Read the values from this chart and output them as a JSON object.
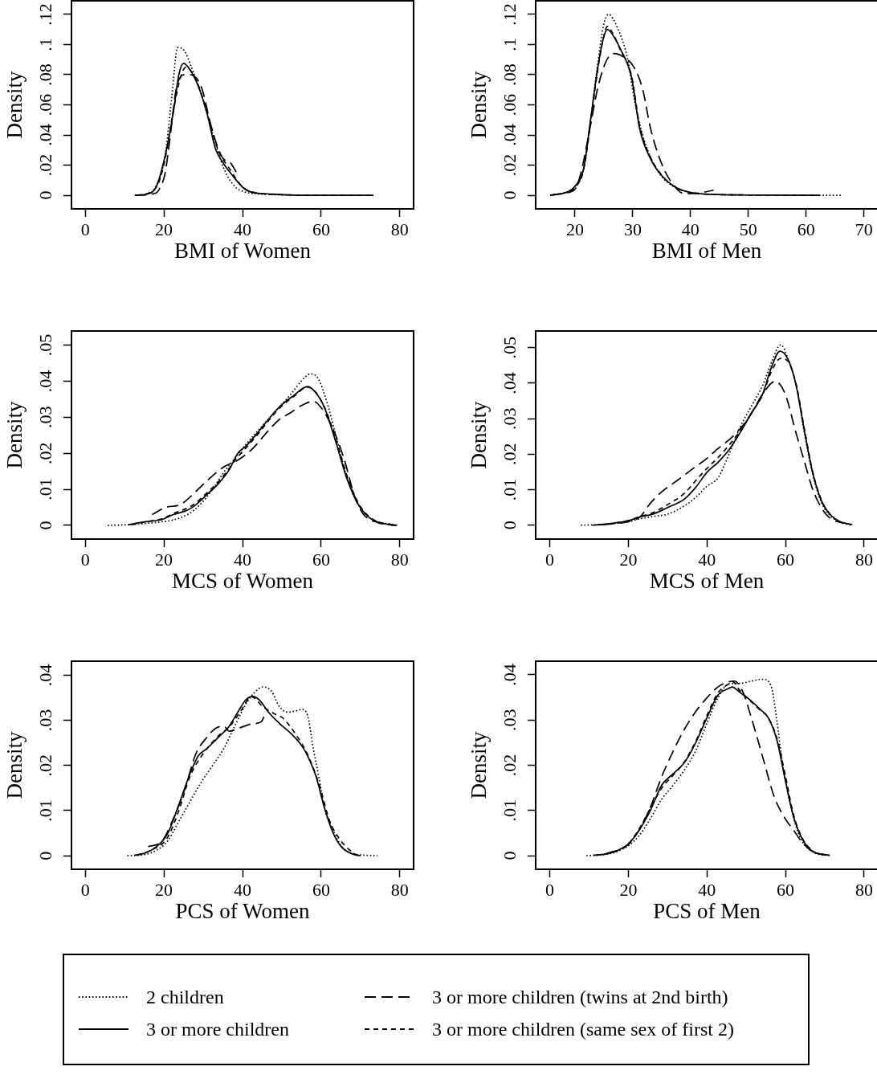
{
  "chart_data": [
    {
      "type": "line",
      "xlabel": "BMI of Women",
      "ylabel": "Density",
      "xlim": [
        -3.5,
        83.5
      ],
      "ylim": [
        -0.009,
        0.129
      ],
      "xticks": [
        0,
        20,
        40,
        60,
        80
      ],
      "yticks": [
        {
          "value": 0,
          "label": "0"
        },
        {
          "value": 0.02,
          "label": ".02"
        },
        {
          "value": 0.04,
          "label": ".04"
        },
        {
          "value": 0.06,
          "label": ".06"
        },
        {
          "value": 0.08,
          "label": ".08"
        },
        {
          "value": 0.1,
          "label": ".1"
        },
        {
          "value": 0.12,
          "label": ".12"
        }
      ],
      "legend": "bottom",
      "series": [
        {
          "name": "2 children",
          "color": "#000000",
          "line_style": "dotted",
          "x": [
            12.6,
            16,
            18,
            20.3,
            22,
            23.5,
            25.2,
            27,
            29.5,
            32.4,
            35.2,
            38,
            40.2,
            44,
            50,
            60,
            70
          ],
          "values": [
            0,
            0.001,
            0.006,
            0.026,
            0.065,
            0.098,
            0.096,
            0.085,
            0.067,
            0.041,
            0.018,
            0.006,
            0.0025,
            0.001,
            0.0003,
            0,
            0
          ]
        },
        {
          "name": "3 or more children",
          "color": "#000000",
          "line_style": "solid",
          "x": [
            12.6,
            16,
            18.1,
            20.3,
            22.4,
            23.8,
            25,
            26.7,
            28.8,
            30.9,
            33.1,
            35.2,
            37.3,
            40.2,
            42.3,
            46.6,
            49.4,
            56.5,
            73.3
          ],
          "values": [
            0,
            0.001,
            0.006,
            0.026,
            0.055,
            0.08,
            0.0875,
            0.083,
            0.072,
            0.055,
            0.031,
            0.021,
            0.0136,
            0.005,
            0.002,
            0.001,
            0.0005,
            0,
            0
          ]
        },
        {
          "name": "3 or more children (twins at 2nd birth)",
          "color": "#000000",
          "line_style": "dashed",
          "x": [
            12.6,
            18,
            19.2,
            20.3,
            21.7,
            23.1,
            25.2,
            26.5,
            28.5,
            30,
            31.6,
            33.8,
            35.2,
            36.6,
            38.4
          ],
          "values": [
            0,
            0.0015,
            0.006,
            0.0145,
            0.041,
            0.07,
            0.08,
            0.08,
            0.077,
            0.068,
            0.05,
            0.031,
            0.024,
            0.0225,
            0.0155
          ]
        },
        {
          "name": "3 or more children (same sex of first 2)",
          "color": "#000000",
          "line_style": "dashed",
          "x": [
            13.2,
            18,
            20.3,
            22.4,
            24.2,
            25.6,
            28.1,
            30.9,
            33.8,
            36.6,
            40.2,
            43.8,
            49.4,
            60,
            72.5
          ],
          "values": [
            0,
            0.005,
            0.024,
            0.056,
            0.078,
            0.085,
            0.077,
            0.056,
            0.03,
            0.018,
            0.005,
            0.0015,
            0.0005,
            0,
            0
          ]
        }
      ]
    },
    {
      "type": "line",
      "xlabel": "BMI of Men",
      "ylabel": "Density",
      "xlim": [
        13.2,
        72.4
      ],
      "ylim": [
        -0.009,
        0.129
      ],
      "xticks": [
        20,
        30,
        40,
        50,
        60,
        70
      ],
      "yticks": [
        {
          "value": 0,
          "label": "0"
        },
        {
          "value": 0.02,
          "label": ".02"
        },
        {
          "value": 0.04,
          "label": ".04"
        },
        {
          "value": 0.06,
          "label": ".06"
        },
        {
          "value": 0.08,
          "label": ".08"
        },
        {
          "value": 0.1,
          "label": ".1"
        },
        {
          "value": 0.12,
          "label": ".12"
        }
      ],
      "series": [
        {
          "color": "#000000",
          "line_style": "dotted",
          "x": [
            15.7,
            18.1,
            20,
            21.5,
            22.7,
            23.9,
            24.9,
            25.8,
            27.3,
            29.2,
            30.2,
            31.7,
            33.1,
            35.1,
            37.5,
            39.9,
            44.7,
            49.5,
            66
          ],
          "values": [
            0,
            0.0015,
            0.006,
            0.017,
            0.05,
            0.086,
            0.112,
            0.12,
            0.1115,
            0.089,
            0.065,
            0.04,
            0.025,
            0.012,
            0.005,
            0.002,
            0.0005,
            0.0002,
            0
          ]
        },
        {
          "color": "#000000",
          "line_style": "solid",
          "x": [
            15.7,
            18.1,
            20,
            21.5,
            22.7,
            23.9,
            24.9,
            25.6,
            26.6,
            27.8,
            29.8,
            31.2,
            33.1,
            35.1,
            37.5,
            39.9,
            44.7,
            49.5,
            62.4
          ],
          "values": [
            0.0002,
            0.0015,
            0.006,
            0.018,
            0.05,
            0.0835,
            0.104,
            0.11,
            0.106,
            0.0975,
            0.078,
            0.044,
            0.024,
            0.0127,
            0.0052,
            0.0019,
            0.0005,
            0.0002,
            0
          ]
        },
        {
          "color": "#000000",
          "line_style": "dashed",
          "x": [
            15.7,
            18.1,
            20,
            21,
            22.5,
            23.9,
            25.4,
            26.8,
            28.3,
            30.2,
            31.7,
            33.1,
            35.1,
            37,
            39,
            41.4,
            44
          ],
          "values": [
            0,
            0.0015,
            0.004,
            0.0145,
            0.0425,
            0.0705,
            0.089,
            0.094,
            0.092,
            0.085,
            0.0705,
            0.044,
            0.02,
            0.007,
            0.001,
            0.0015,
            0.0034
          ]
        },
        {
          "color": "#000000",
          "line_style": "dashed",
          "x": [
            16.2,
            18.1,
            20,
            21.5,
            22.7,
            23.9,
            24.9,
            25.6,
            26.6,
            27.8,
            29.8,
            31.2,
            33.1,
            35.1,
            37.5,
            39.9,
            44.7,
            61.5
          ],
          "values": [
            0.0002,
            0.0015,
            0.005,
            0.017,
            0.048,
            0.082,
            0.104,
            0.112,
            0.107,
            0.097,
            0.079,
            0.046,
            0.025,
            0.013,
            0.005,
            0.002,
            0.0005,
            0
          ]
        }
      ]
    },
    {
      "type": "line",
      "xlabel": "MCS of Women",
      "ylabel": "Density",
      "xlim": [
        -3.5,
        83.5
      ],
      "ylim": [
        -0.0038,
        0.0539
      ],
      "xticks": [
        0,
        20,
        40,
        60,
        80
      ],
      "yticks": [
        {
          "value": 0,
          "label": "0"
        },
        {
          "value": 0.01,
          "label": ".01"
        },
        {
          "value": 0.02,
          "label": ".02"
        },
        {
          "value": 0.03,
          "label": ".03"
        },
        {
          "value": 0.04,
          "label": ".04"
        },
        {
          "value": 0.05,
          "label": ".05"
        }
      ],
      "series": [
        {
          "color": "#000000",
          "line_style": "dotted",
          "x": [
            5.7,
            11,
            19.5,
            22.4,
            26.6,
            29.5,
            32.4,
            35.2,
            38,
            40.9,
            46.6,
            52.3,
            55.1,
            57.2,
            59.3,
            61.5,
            63.7,
            66.5,
            69.3,
            72.2,
            79.3
          ],
          "values": [
            0,
            0.0002,
            0.001,
            0.0015,
            0.0034,
            0.0061,
            0.01,
            0.0147,
            0.0185,
            0.0225,
            0.0295,
            0.0364,
            0.0402,
            0.042,
            0.0406,
            0.034,
            0.025,
            0.0135,
            0.006,
            0.0022,
            0
          ]
        },
        {
          "color": "#000000",
          "line_style": "solid",
          "x": [
            11,
            15.3,
            19.5,
            22.4,
            26,
            28.1,
            30.9,
            33.8,
            36.6,
            38.8,
            40.9,
            43.7,
            46.6,
            49.4,
            53,
            56.5,
            58.7,
            60.9,
            63.7,
            66.5,
            69.3,
            72.2,
            75,
            79.3
          ],
          "values": [
            0.0002,
            0.001,
            0.0016,
            0.003,
            0.0042,
            0.0057,
            0.0085,
            0.0115,
            0.0154,
            0.02,
            0.022,
            0.0255,
            0.0294,
            0.0329,
            0.036,
            0.0385,
            0.0367,
            0.0325,
            0.0232,
            0.0131,
            0.0061,
            0.0022,
            0.0007,
            0
          ]
        },
        {
          "color": "#000000",
          "line_style": "dashed",
          "x": [
            17,
            20.5,
            24.1,
            26.9,
            30.9,
            35.2,
            38.8,
            42.3,
            46.6,
            49.4,
            52.3,
            55.1,
            58,
            60.1,
            62.9,
            65.8,
            68.6,
            70.8,
            74.3,
            78.8
          ],
          "values": [
            0.003,
            0.005,
            0.0057,
            0.0081,
            0.0123,
            0.0162,
            0.0181,
            0.021,
            0.0263,
            0.0294,
            0.0313,
            0.0333,
            0.0344,
            0.0325,
            0.027,
            0.0185,
            0.0077,
            0.003,
            0.0008,
            0
          ]
        },
        {
          "color": "#000000",
          "line_style": "dashed",
          "x": [
            11.8,
            15.3,
            19.5,
            22.4,
            26,
            28.1,
            30.9,
            33.8,
            36.6,
            38.8,
            40.9,
            43.7,
            46.6,
            49.4,
            53,
            56.5,
            58.7,
            60.9,
            63.7,
            66.5,
            69.3,
            72.2,
            75,
            78.5
          ],
          "values": [
            0.0002,
            0.001,
            0.0018,
            0.0033,
            0.0048,
            0.0062,
            0.009,
            0.012,
            0.0158,
            0.019,
            0.0215,
            0.025,
            0.029,
            0.0325,
            0.0357,
            0.0383,
            0.0368,
            0.0326,
            0.024,
            0.014,
            0.0065,
            0.0024,
            0.0008,
            0
          ]
        }
      ]
    },
    {
      "type": "line",
      "xlabel": "MCS of Men",
      "ylabel": "Density",
      "xlim": [
        -3.6,
        83.5
      ],
      "ylim": [
        -0.0039,
        0.0547
      ],
      "xticks": [
        0,
        20,
        40,
        60,
        80
      ],
      "yticks": [
        {
          "value": 0,
          "label": "0"
        },
        {
          "value": 0.01,
          "label": ".01"
        },
        {
          "value": 0.02,
          "label": ".02"
        },
        {
          "value": 0.03,
          "label": ".03"
        },
        {
          "value": 0.04,
          "label": ".04"
        },
        {
          "value": 0.05,
          "label": ".05"
        }
      ],
      "series": [
        {
          "color": "#000000",
          "line_style": "dotted",
          "x": [
            7.9,
            15.7,
            20,
            22.9,
            26.4,
            30,
            34.3,
            37.1,
            40,
            42.8,
            45.6,
            48.4,
            51.3,
            54.2,
            56.3,
            58.8,
            60.6,
            62.7,
            64.8,
            66.9,
            69.1,
            71.3,
            74.1,
            77
          ],
          "values": [
            0,
            0.0004,
            0.001,
            0.0018,
            0.0025,
            0.0031,
            0.0055,
            0.0078,
            0.011,
            0.0133,
            0.02,
            0.0275,
            0.0335,
            0.0394,
            0.0455,
            0.0508,
            0.047,
            0.0395,
            0.026,
            0.0145,
            0.0065,
            0.0028,
            0.0008,
            0
          ]
        },
        {
          "color": "#000000",
          "line_style": "solid",
          "x": [
            10.8,
            15.7,
            20,
            22.9,
            26.4,
            30,
            34.3,
            37.1,
            40,
            42.8,
            45.6,
            48.4,
            51.3,
            54.2,
            56.3,
            58.6,
            60.6,
            62.7,
            64.8,
            66.9,
            69.1,
            71.3,
            74.1,
            77
          ],
          "values": [
            0,
            0.0005,
            0.0013,
            0.0023,
            0.0032,
            0.005,
            0.0074,
            0.0106,
            0.0149,
            0.0177,
            0.0212,
            0.026,
            0.0315,
            0.037,
            0.0441,
            0.049,
            0.0468,
            0.0394,
            0.0267,
            0.0149,
            0.007,
            0.0031,
            0.0009,
            0.0002
          ]
        },
        {
          "color": "#000000",
          "line_style": "dashed",
          "x": [
            13.5,
            20,
            22.9,
            25.6,
            28.5,
            32.8,
            37.1,
            40,
            42.8,
            45.6,
            48.4,
            51.3,
            54.2,
            57.4,
            59.9,
            62.7,
            64.8,
            66.9,
            69.1,
            71.3,
            74.5
          ],
          "values": [
            0.0002,
            0.001,
            0.0023,
            0.0062,
            0.0094,
            0.0129,
            0.0165,
            0.0188,
            0.0216,
            0.024,
            0.0271,
            0.0315,
            0.037,
            0.0405,
            0.037,
            0.0259,
            0.018,
            0.0102,
            0.005,
            0.002,
            0.0006
          ]
        },
        {
          "color": "#000000",
          "line_style": "dashed",
          "x": [
            12.5,
            15.7,
            20,
            22.9,
            26.4,
            30,
            34.3,
            37.1,
            40,
            42.8,
            45.6,
            48.4,
            51.3,
            54.2,
            56.3,
            58.8,
            60.6,
            62.7,
            64.8,
            66.9,
            69.1,
            71.3,
            74.1,
            75.5
          ],
          "values": [
            0.0001,
            0.0005,
            0.0013,
            0.0024,
            0.0036,
            0.0058,
            0.009,
            0.0125,
            0.016,
            0.019,
            0.0225,
            0.0265,
            0.0315,
            0.0368,
            0.043,
            0.047,
            0.0462,
            0.0398,
            0.0272,
            0.0152,
            0.0072,
            0.0031,
            0.0009,
            0.0005
          ]
        }
      ]
    },
    {
      "type": "line",
      "xlabel": "PCS of Women",
      "ylabel": "Density",
      "xlim": [
        -3.5,
        83.5
      ],
      "ylim": [
        -0.003,
        0.0431
      ],
      "xticks": [
        0,
        20,
        40,
        60,
        80
      ],
      "yticks": [
        {
          "value": 0,
          "label": "0"
        },
        {
          "value": 0.01,
          "label": ".01"
        },
        {
          "value": 0.02,
          "label": ".02"
        },
        {
          "value": 0.03,
          "label": ".03"
        },
        {
          "value": 0.04,
          "label": ".04"
        }
      ],
      "series": [
        {
          "color": "#000000",
          "line_style": "dotted",
          "x": [
            10.7,
            15.3,
            18.1,
            20.9,
            23.8,
            26.6,
            29.5,
            32.4,
            35.2,
            38,
            40.9,
            43,
            45.2,
            47.3,
            49.4,
            51.5,
            53.6,
            55.1,
            56.5,
            58,
            59.4,
            60.8,
            63,
            65.1,
            67.9,
            74.3
          ],
          "values": [
            0,
            0.0003,
            0.0012,
            0.0032,
            0.0076,
            0.0119,
            0.0163,
            0.02,
            0.0237,
            0.0287,
            0.0337,
            0.0361,
            0.0374,
            0.0365,
            0.033,
            0.0318,
            0.0321,
            0.0324,
            0.0312,
            0.0237,
            0.0175,
            0.0107,
            0.0057,
            0.0022,
            0.0005,
            0
          ]
        },
        {
          "color": "#000000",
          "line_style": "solid",
          "x": [
            12.4,
            15.3,
            18.1,
            20.9,
            23.8,
            26.6,
            28.8,
            30.9,
            33.8,
            36.6,
            38.8,
            40.9,
            42.7,
            44.4,
            46.6,
            49.4,
            52.3,
            55.1,
            56.5,
            58.7,
            60.8,
            63,
            65.1,
            67.9,
            70
          ],
          "values": [
            0.0001,
            0.0006,
            0.002,
            0.0048,
            0.0113,
            0.0181,
            0.0222,
            0.0237,
            0.0262,
            0.0287,
            0.0318,
            0.0346,
            0.0353,
            0.0344,
            0.0318,
            0.0293,
            0.0271,
            0.0243,
            0.0222,
            0.0175,
            0.0107,
            0.0051,
            0.002,
            0.0004,
            0
          ]
        },
        {
          "color": "#000000",
          "line_style": "dashed",
          "x": [
            16,
            19.5,
            22.4,
            25.2,
            28.1,
            30.9,
            33.1,
            35.2,
            36.6,
            39.5,
            42.3,
            44.8,
            45.5
          ],
          "values": [
            0.002,
            0.0032,
            0.0082,
            0.0144,
            0.0225,
            0.0262,
            0.0282,
            0.0287,
            0.0276,
            0.0284,
            0.0292,
            0.0297,
            0.0309
          ]
        },
        {
          "color": "#000000",
          "line_style": "dashed",
          "x": [
            13,
            16.7,
            20.9,
            23.8,
            26.6,
            29.5,
            33.8,
            36.6,
            39.5,
            42.3,
            45.2,
            48,
            50.1,
            53.6,
            56.5,
            59.4,
            62.2,
            65.1,
            67.9,
            69.3
          ],
          "values": [
            0.0001,
            0.0012,
            0.004,
            0.01,
            0.0175,
            0.022,
            0.0265,
            0.0285,
            0.032,
            0.0352,
            0.033,
            0.0315,
            0.0306,
            0.0268,
            0.0225,
            0.016,
            0.0076,
            0.0032,
            0.0008,
            0
          ]
        }
      ]
    },
    {
      "type": "line",
      "xlabel": "PCS of Men",
      "ylabel": "Density",
      "xlim": [
        -3.6,
        83.5
      ],
      "ylim": [
        -0.003,
        0.043
      ],
      "xticks": [
        0,
        20,
        40,
        60,
        80
      ],
      "yticks": [
        {
          "value": 0,
          "label": "0"
        },
        {
          "value": 0.01,
          "label": ".01"
        },
        {
          "value": 0.02,
          "label": ".02"
        },
        {
          "value": 0.03,
          "label": ".03"
        },
        {
          "value": 0.04,
          "label": ".04"
        }
      ],
      "series": [
        {
          "color": "#000000",
          "line_style": "dotted",
          "x": [
            9.3,
            14.3,
            17.1,
            20,
            22.8,
            25.6,
            28.5,
            31.4,
            34.3,
            37.1,
            40,
            42.8,
            45.6,
            48.4,
            51.3,
            54.2,
            56.3,
            57.8,
            59.2,
            61.4,
            63.5,
            67,
            71.3
          ],
          "values": [
            0,
            0.0003,
            0.0009,
            0.0022,
            0.0045,
            0.0082,
            0.0125,
            0.0156,
            0.019,
            0.0231,
            0.0293,
            0.0349,
            0.038,
            0.0381,
            0.0386,
            0.039,
            0.0376,
            0.0299,
            0.0206,
            0.0107,
            0.0045,
            0.0008,
            0
          ]
        },
        {
          "color": "#000000",
          "line_style": "solid",
          "x": [
            11.1,
            14.3,
            17.1,
            20,
            22.8,
            25.6,
            28.5,
            31.4,
            34.3,
            37.1,
            40,
            42.8,
            45.6,
            46.4,
            48.4,
            51.3,
            53.5,
            55.6,
            57.8,
            59.9,
            62,
            64.2,
            67,
            71.3
          ],
          "values": [
            0.0001,
            0.0004,
            0.0011,
            0.0026,
            0.0057,
            0.01,
            0.0156,
            0.0181,
            0.0206,
            0.0249,
            0.0305,
            0.0355,
            0.037,
            0.0373,
            0.0361,
            0.0342,
            0.0324,
            0.0305,
            0.0256,
            0.0169,
            0.0088,
            0.0038,
            0.0009,
            0.0001
          ]
        },
        {
          "color": "#000000",
          "line_style": "dashed",
          "x": [
            14.3,
            20,
            22.8,
            25.6,
            28.5,
            31.4,
            34.3,
            37.1,
            40,
            42.8,
            45,
            47,
            49.2,
            51.3,
            54.2,
            57.1,
            59.9,
            62,
            64.2,
            67,
            70.6
          ],
          "values": [
            0.0004,
            0.0025,
            0.0058,
            0.0107,
            0.0175,
            0.0231,
            0.028,
            0.0318,
            0.0349,
            0.0373,
            0.0383,
            0.0386,
            0.0361,
            0.0305,
            0.0218,
            0.0131,
            0.0082,
            0.0057,
            0.003,
            0.0009,
            0.0001
          ]
        },
        {
          "color": "#000000",
          "line_style": "dashed",
          "x": [
            11.8,
            14.3,
            17.1,
            20,
            22.8,
            25.6,
            28.5,
            31.4,
            34.3,
            37.1,
            40,
            42.8,
            45.6,
            46.5,
            48.4,
            51.3,
            53.5,
            55.6,
            57.8,
            59.9,
            62,
            64.2,
            67,
            70.4
          ],
          "values": [
            0.0001,
            0.0004,
            0.0011,
            0.0026,
            0.006,
            0.0105,
            0.015,
            0.0178,
            0.0208,
            0.0252,
            0.031,
            0.036,
            0.038,
            0.0385,
            0.0365,
            0.034,
            0.0322,
            0.0305,
            0.026,
            0.018,
            0.0092,
            0.004,
            0.001,
            0.0001
          ]
        }
      ]
    }
  ]
}
